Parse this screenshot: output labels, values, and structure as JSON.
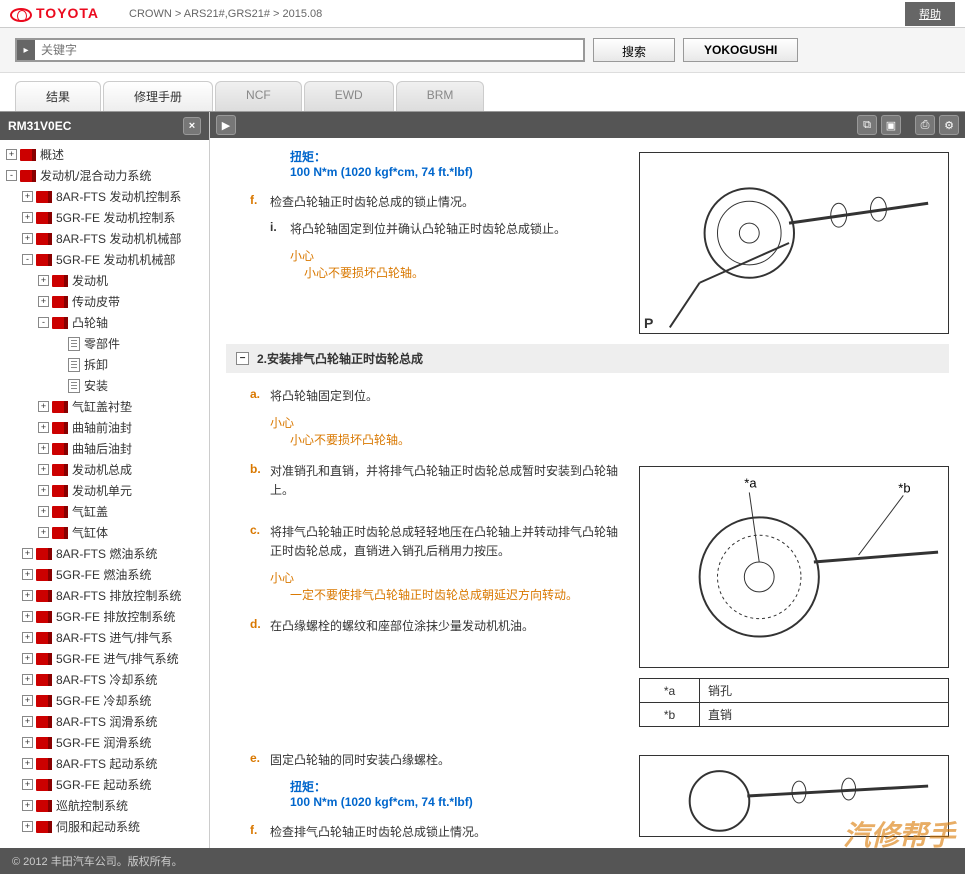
{
  "header": {
    "brand": "TOYOTA",
    "breadcrumb": "CROWN  >  ARS21#,GRS21#  >  2015.08",
    "help": "帮助"
  },
  "search": {
    "placeholder": "关键字",
    "search_btn": "搜索",
    "yokogushi_btn": "YOKOGUSHI"
  },
  "tabs": [
    {
      "label": "结果",
      "active": true
    },
    {
      "label": "修理手册",
      "active": true
    },
    {
      "label": "NCF",
      "active": false
    },
    {
      "label": "EWD",
      "active": false
    },
    {
      "label": "BRM",
      "active": false
    }
  ],
  "sidebar": {
    "code": "RM31V0EC",
    "tree": [
      {
        "lvl": 1,
        "t": "+",
        "icon": "book",
        "label": "概述"
      },
      {
        "lvl": 1,
        "t": "-",
        "icon": "book",
        "label": "发动机/混合动力系统"
      },
      {
        "lvl": 2,
        "t": "+",
        "icon": "book",
        "label": "8AR-FTS 发动机控制系"
      },
      {
        "lvl": 2,
        "t": "+",
        "icon": "book",
        "label": "5GR-FE 发动机控制系"
      },
      {
        "lvl": 2,
        "t": "+",
        "icon": "book",
        "label": "8AR-FTS 发动机机械部"
      },
      {
        "lvl": 2,
        "t": "-",
        "icon": "book",
        "label": "5GR-FE 发动机机械部"
      },
      {
        "lvl": 3,
        "t": "+",
        "icon": "book",
        "label": "发动机"
      },
      {
        "lvl": 3,
        "t": "+",
        "icon": "book",
        "label": "传动皮带"
      },
      {
        "lvl": 3,
        "t": "-",
        "icon": "book",
        "label": "凸轮轴"
      },
      {
        "lvl": 4,
        "t": "",
        "icon": "doc",
        "label": "零部件"
      },
      {
        "lvl": 4,
        "t": "",
        "icon": "doc",
        "label": "拆卸"
      },
      {
        "lvl": 4,
        "t": "",
        "icon": "doc",
        "label": "安装"
      },
      {
        "lvl": 3,
        "t": "+",
        "icon": "book",
        "label": "气缸盖衬垫"
      },
      {
        "lvl": 3,
        "t": "+",
        "icon": "book",
        "label": "曲轴前油封"
      },
      {
        "lvl": 3,
        "t": "+",
        "icon": "book",
        "label": "曲轴后油封"
      },
      {
        "lvl": 3,
        "t": "+",
        "icon": "book",
        "label": "发动机总成"
      },
      {
        "lvl": 3,
        "t": "+",
        "icon": "book",
        "label": "发动机单元"
      },
      {
        "lvl": 3,
        "t": "+",
        "icon": "book",
        "label": "气缸盖"
      },
      {
        "lvl": 3,
        "t": "+",
        "icon": "book",
        "label": "气缸体"
      },
      {
        "lvl": 2,
        "t": "+",
        "icon": "book",
        "label": "8AR-FTS 燃油系统"
      },
      {
        "lvl": 2,
        "t": "+",
        "icon": "book",
        "label": "5GR-FE 燃油系统"
      },
      {
        "lvl": 2,
        "t": "+",
        "icon": "book",
        "label": "8AR-FTS 排放控制系统"
      },
      {
        "lvl": 2,
        "t": "+",
        "icon": "book",
        "label": "5GR-FE 排放控制系统"
      },
      {
        "lvl": 2,
        "t": "+",
        "icon": "book",
        "label": "8AR-FTS 进气/排气系"
      },
      {
        "lvl": 2,
        "t": "+",
        "icon": "book",
        "label": "5GR-FE 进气/排气系统"
      },
      {
        "lvl": 2,
        "t": "+",
        "icon": "book",
        "label": "8AR-FTS 冷却系统"
      },
      {
        "lvl": 2,
        "t": "+",
        "icon": "book",
        "label": "5GR-FE 冷却系统"
      },
      {
        "lvl": 2,
        "t": "+",
        "icon": "book",
        "label": "8AR-FTS 润滑系统"
      },
      {
        "lvl": 2,
        "t": "+",
        "icon": "book",
        "label": "5GR-FE 润滑系统"
      },
      {
        "lvl": 2,
        "t": "+",
        "icon": "book",
        "label": "8AR-FTS 起动系统"
      },
      {
        "lvl": 2,
        "t": "+",
        "icon": "book",
        "label": "5GR-FE 起动系统"
      },
      {
        "lvl": 2,
        "t": "+",
        "icon": "book",
        "label": "巡航控制系统"
      },
      {
        "lvl": 2,
        "t": "+",
        "icon": "book",
        "label": "伺服和起动系统"
      }
    ]
  },
  "content": {
    "torque_label": "扭矩：",
    "torque_val": "100 N*m (1020 kgf*cm, 74 ft.*lbf)",
    "step_f": {
      "letter": "f.",
      "text": "检查凸轮轴正时齿轮总成的锁止情况。"
    },
    "step_f_i": {
      "letter": "i.",
      "text": "将凸轮轴固定到位并确认凸轮轴正时齿轮总成锁止。"
    },
    "caution_label": "小心",
    "caution_f": "小心不要损坏凸轮轴。",
    "section2": "2.安装排气凸轮轴正时齿轮总成",
    "step_a": {
      "letter": "a.",
      "text": "将凸轮轴固定到位。"
    },
    "caution_a": "小心不要损坏凸轮轴。",
    "step_b": {
      "letter": "b.",
      "text": "对准销孔和直销，并将排气凸轮轴正时齿轮总成暂时安装到凸轮轴上。"
    },
    "step_c": {
      "letter": "c.",
      "text": "将排气凸轮轴正时齿轮总成轻轻地压在凸轮轴上并转动排气凸轮轴正时齿轮总成，直销进入销孔后稍用力按压。"
    },
    "caution_c": "一定不要使排气凸轮轴正时齿轮总成朝延迟方向转动。",
    "step_d": {
      "letter": "d.",
      "text": "在凸缘螺栓的螺纹和座部位涂抹少量发动机机油。"
    },
    "step_e": {
      "letter": "e.",
      "text": "固定凸轮轴的同时安装凸缘螺栓。"
    },
    "step_f2": {
      "letter": "f.",
      "text": "检查排气凸轮轴正时齿轮总成锁止情况。"
    },
    "legend": [
      [
        "*a",
        "销孔"
      ],
      [
        "*b",
        "直销"
      ]
    ],
    "fig_labels": {
      "a": "*a",
      "b": "*b",
      "p": "P"
    }
  },
  "footer": "© 2012 丰田汽车公司。版权所有。",
  "watermark": "汽修帮手"
}
